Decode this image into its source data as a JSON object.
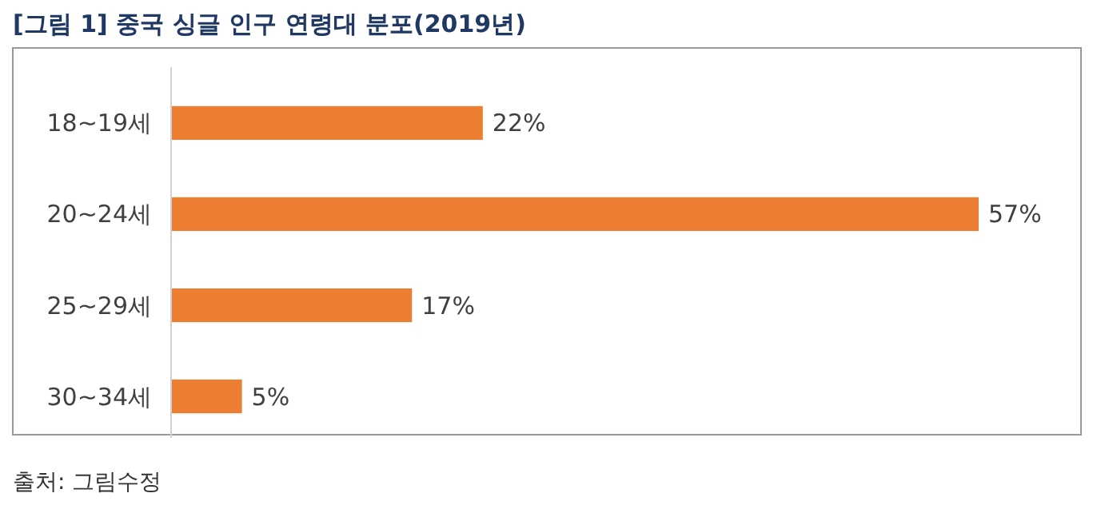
{
  "chart_data": {
    "type": "bar",
    "orientation": "horizontal",
    "title": "[그림 1] 중국 싱글 인구 연령대 분포(2019년)",
    "categories": [
      "18~19세",
      "20~24세",
      "25~29세",
      "30~34세"
    ],
    "values": [
      22,
      57,
      17,
      5
    ],
    "value_labels": [
      "22%",
      "57%",
      "17%",
      "5%"
    ],
    "color": "#ed7d31",
    "annotations": [
      "출처: 그림수정"
    ]
  }
}
